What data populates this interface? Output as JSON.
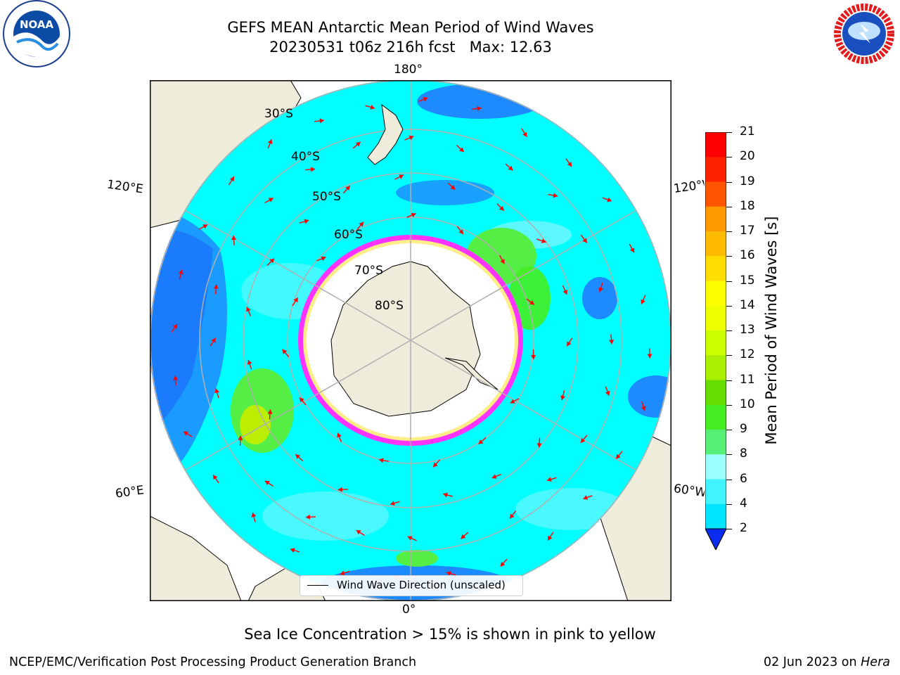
{
  "title": {
    "line1": "GEFS MEAN Antarctic Mean Period of Wind Waves",
    "line2": "20230531 t06z 216h fcst   Max: 12.63"
  },
  "map": {
    "projection": "south-polar-stereographic",
    "longitude_labels": {
      "top": "180°",
      "bottom": "0°",
      "upper_left": "120°E",
      "lower_left": "60°E",
      "upper_right": "120°W",
      "lower_right": "60°W"
    },
    "latitude_labels": [
      "30°S",
      "40°S",
      "50°S",
      "60°S",
      "70°S",
      "80°S"
    ],
    "colors": {
      "land": "#efecdb",
      "ocean_cyan": "#00ffff",
      "ocean_light": "#5cf7ff",
      "ocean_blue": "#1e8aff",
      "ocean_deep": "#0a2cf0",
      "ice_edge": "#ff33ff",
      "ice_core": "#ffffff",
      "green": "#55ee44",
      "arrow": "#ff0000"
    },
    "legend": "Wind Wave Direction (unscaled)"
  },
  "colorbar": {
    "label": "Mean Period of Wind Waves [s]",
    "ticks": [
      "2",
      "4",
      "6",
      "8",
      "9",
      "10",
      "11",
      "12",
      "13",
      "14",
      "15",
      "16",
      "17",
      "18",
      "19",
      "20",
      "21"
    ],
    "colors": [
      "#0a2cf0",
      "#1e8aff",
      "#00e5ff",
      "#3ff4ff",
      "#9cffff",
      "#55ee77",
      "#44ee22",
      "#66dd00",
      "#aaee00",
      "#ccff00",
      "#eeff00",
      "#ffff00",
      "#ffdd00",
      "#ffbb00",
      "#ff9900",
      "#ff5500",
      "#ff2200",
      "#ff0000"
    ]
  },
  "footer": {
    "sea_ice_note": "Sea Ice Concentration > 15% is shown in pink to yellow",
    "credit": "NCEP/EMC/Verification Post Processing Product Generation Branch",
    "date_prefix": "02 Jun 2023 on ",
    "machine": "Hera"
  },
  "logos": {
    "left": "NOAA",
    "right": "NATIONAL WEATHER SERVICE"
  }
}
